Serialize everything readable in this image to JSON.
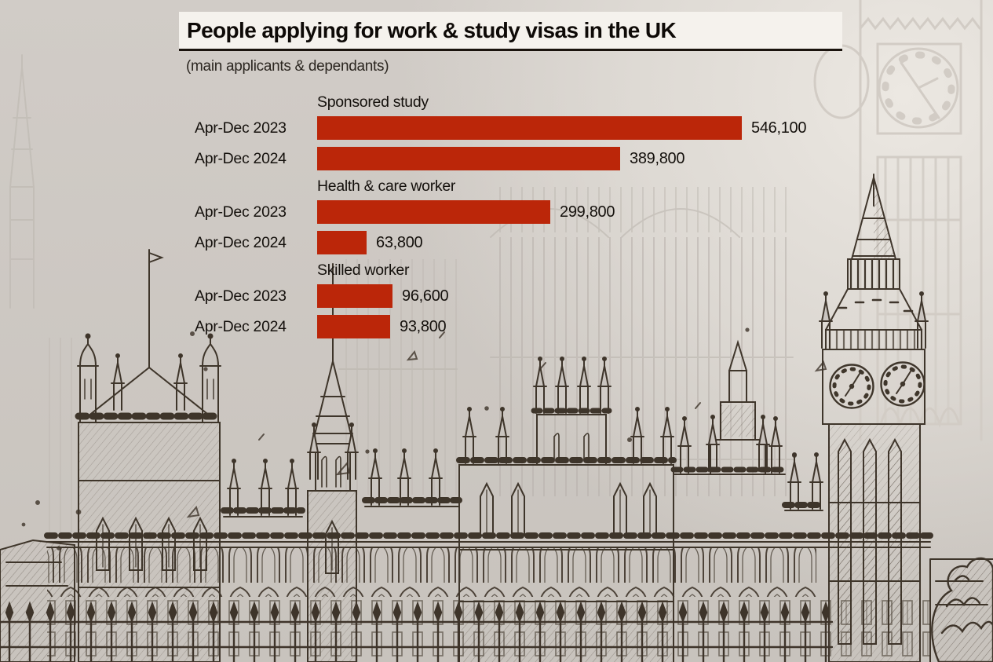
{
  "chart_data": {
    "type": "bar",
    "orientation": "horizontal",
    "title": "People applying for work & study visas in the UK",
    "subtitle": "(main applicants & dependants)",
    "bar_color": "#bb2609",
    "text_color": "#14100c",
    "xlim": [
      0,
      560000
    ],
    "grid": false,
    "legend": "none",
    "groups": [
      {
        "label": "Sponsored study",
        "rows": [
          {
            "period": "Apr-Dec 2023",
            "value": 546100,
            "value_label": "546,100"
          },
          {
            "period": "Apr-Dec 2024",
            "value": 389800,
            "value_label": "389,800"
          }
        ]
      },
      {
        "label": "Health & care worker",
        "rows": [
          {
            "period": "Apr-Dec 2023",
            "value": 299800,
            "value_label": "299,800"
          },
          {
            "period": "Apr-Dec 2024",
            "value": 63800,
            "value_label": "63,800"
          }
        ]
      },
      {
        "label": "Skilled worker",
        "rows": [
          {
            "period": "Apr-Dec 2023",
            "value": 96600,
            "value_label": "96,600"
          },
          {
            "period": "Apr-Dec 2024",
            "value": 93800,
            "value_label": "93,800"
          }
        ]
      }
    ]
  }
}
